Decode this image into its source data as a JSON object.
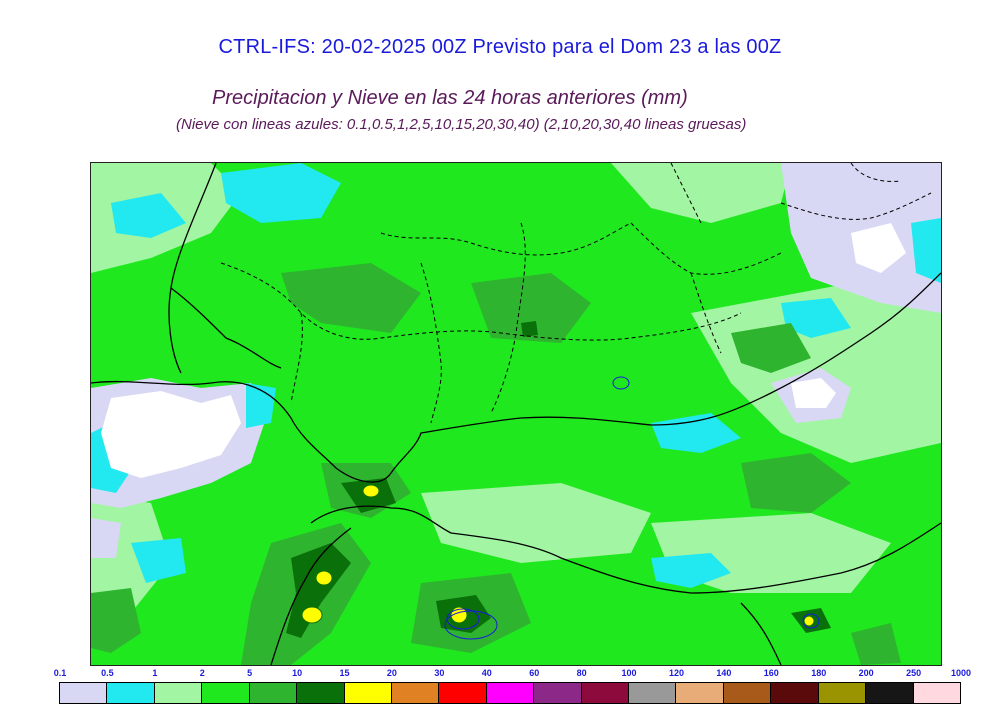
{
  "header": {
    "title": "CTRL-IFS: 20-02-2025 00Z Previsto para el Dom 23 a las 00Z",
    "subtitle": "Precipitacion y Nieve en las 24 horas anteriores (mm)",
    "note": "(Nieve con lineas azules: 0.1,0.5,1,2,5,10,15,20,30,40)  (2,10,20,30,40 lineas gruesas)"
  },
  "legend": {
    "ticks": [
      "0.1",
      "0.5",
      "1",
      "2",
      "5",
      "10",
      "15",
      "20",
      "30",
      "40",
      "60",
      "80",
      "100",
      "120",
      "140",
      "160",
      "180",
      "200",
      "250",
      "1000"
    ],
    "colors": [
      "#d8d8f5",
      "#22e8f0",
      "#a2f5a2",
      "#1fe81f",
      "#2fb42f",
      "#0a700a",
      "#ffff00",
      "#e08224",
      "#ff0000",
      "#ff00ff",
      "#8c2888",
      "#8c0a3c",
      "#999999",
      "#e8ac78",
      "#a85a1a",
      "#5a0a0a",
      "#9a9400",
      "#161616",
      "#ffd8e0"
    ]
  },
  "map": {
    "colors": {
      "light": "#d8d8f5",
      "cyan": "#22e8f0",
      "palegreen": "#a2f5a2",
      "green": "#1fe81f",
      "mid": "#2fb42f",
      "dark": "#0a700a",
      "yellow": "#ffff00",
      "border": "#000000"
    }
  }
}
